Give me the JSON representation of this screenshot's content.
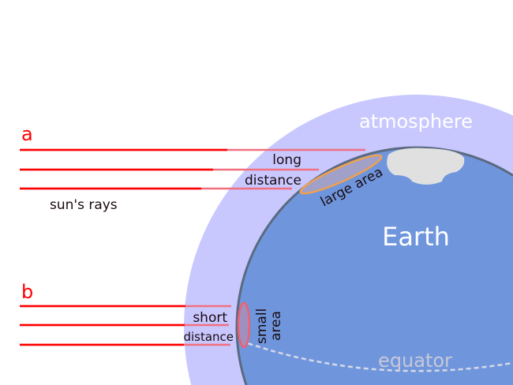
{
  "labels": {
    "a": "a",
    "b": "b",
    "atmosphere": "atmosphere",
    "earth": "Earth",
    "equator": "equator",
    "sun_rays": "sun's rays",
    "long": "long",
    "long_distance": "distance",
    "short": "short",
    "short_distance": "distance",
    "large_area": "large area",
    "small": "small",
    "area": "area"
  },
  "colors": {
    "ray": "#ff0000",
    "ray_in_atmosphere": "#f07080",
    "atmosphere": "#c8c8ff",
    "earth": "#6f96dc",
    "earth_outline": "#5a6a80",
    "continent": "#e0e0e0",
    "large_area_outline": "#f0a050",
    "small_area_outline": "#f06070",
    "label_red": "#ff0000",
    "text_dark": "#1a0a10"
  }
}
